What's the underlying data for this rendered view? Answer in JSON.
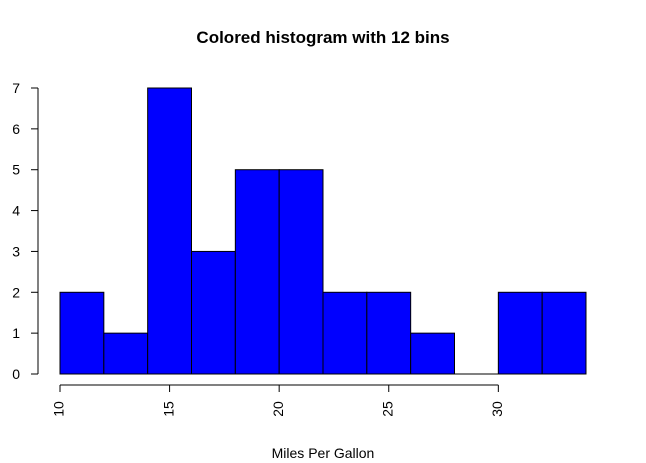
{
  "chart_data": {
    "type": "bar",
    "title": "Colored histogram with 12 bins",
    "xlabel": "Miles Per Gallon",
    "ylabel": "",
    "bins": [
      {
        "start": 10,
        "end": 12,
        "count": 2
      },
      {
        "start": 12,
        "end": 14,
        "count": 1
      },
      {
        "start": 14,
        "end": 16,
        "count": 7
      },
      {
        "start": 16,
        "end": 18,
        "count": 3
      },
      {
        "start": 18,
        "end": 20,
        "count": 5
      },
      {
        "start": 20,
        "end": 22,
        "count": 5
      },
      {
        "start": 22,
        "end": 24,
        "count": 2
      },
      {
        "start": 24,
        "end": 26,
        "count": 2
      },
      {
        "start": 26,
        "end": 28,
        "count": 1
      },
      {
        "start": 28,
        "end": 30,
        "count": 0
      },
      {
        "start": 30,
        "end": 32,
        "count": 2
      },
      {
        "start": 32,
        "end": 34,
        "count": 2
      }
    ],
    "xlim": [
      10,
      34
    ],
    "ylim": [
      0,
      7
    ],
    "x_ticks": [
      "10",
      "15",
      "20",
      "25",
      "30"
    ],
    "y_ticks": [
      "0",
      "1",
      "2",
      "3",
      "4",
      "5",
      "6",
      "7"
    ],
    "bar_color": "#0000FF",
    "border_color": "#000000",
    "grid": false,
    "legend": "none"
  }
}
